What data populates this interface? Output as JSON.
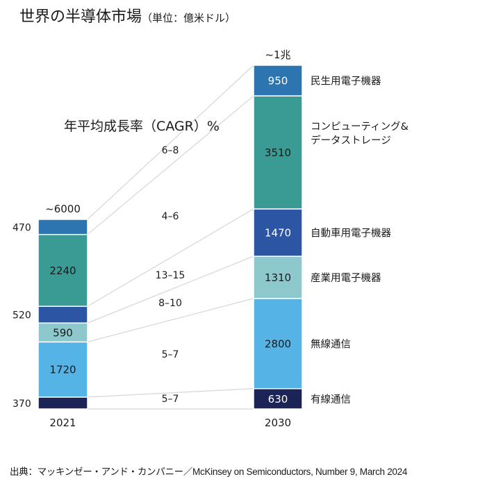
{
  "title": "世界の半導体市場",
  "unit": "（単位：億米ドル）",
  "cagr_heading": "年平均成長率（CAGR）%",
  "source": "出典：マッキンゼー・アンド・カンパニー／McKinsey on Semiconductors, Number 9, March 2024",
  "colors": {
    "wired": "#1b2357",
    "wireless": "#56b3e6",
    "industrial": "#8dc8cc",
    "automotive": "#2c55a3",
    "computing": "#3a9a94",
    "consumer": "#2c75b0",
    "connector": "#d6d6d6"
  },
  "chart_data": {
    "type": "bar",
    "stacked": true,
    "categories": [
      "2021",
      "2030"
    ],
    "totals": [
      "~6000",
      "~1兆"
    ],
    "series": [
      {
        "name": "有線通信",
        "color_key": "wired",
        "values": [
          370,
          630
        ],
        "labels": [
          "370",
          "630"
        ],
        "cagr": "5–7"
      },
      {
        "name": "無線通信",
        "color_key": "wireless",
        "values": [
          1720,
          2800
        ],
        "labels": [
          "1720",
          "2800"
        ],
        "cagr": "5–7"
      },
      {
        "name": "産業用電子機器",
        "color_key": "industrial",
        "values": [
          590,
          1310
        ],
        "labels": [
          "590",
          "1310"
        ],
        "cagr": "8–10"
      },
      {
        "name": "自動車用電子機器",
        "color_key": "automotive",
        "values": [
          520,
          1470
        ],
        "labels": [
          "520",
          "1470"
        ],
        "cagr": "13–15"
      },
      {
        "name": "コンピューティング&\nデータストレージ",
        "color_key": "computing",
        "values": [
          2240,
          3510
        ],
        "labels": [
          "2240",
          "3510"
        ],
        "cagr": "4–6"
      },
      {
        "name": "民生用電子機器",
        "color_key": "consumer",
        "values": [
          470,
          950
        ],
        "labels": [
          "470",
          "950"
        ],
        "cagr": "6–8"
      }
    ]
  }
}
